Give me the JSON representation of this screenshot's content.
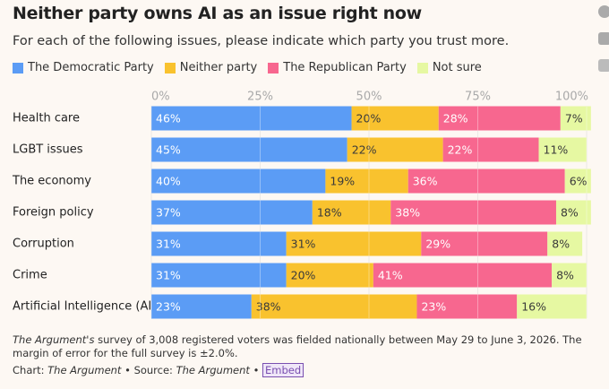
{
  "chart_data": {
    "type": "stacked_bar_horizontal",
    "title": "Neither party owns AI as an issue right now",
    "subtitle": "For each of the following issues, please indicate which party you trust more.",
    "categories": [
      "Health care",
      "LGBT issues",
      "The economy",
      "Foreign policy",
      "Corruption",
      "Crime",
      "Artificial Intelligence (AI)"
    ],
    "series": [
      {
        "name": "The Democratic Party",
        "color": "#5b9cf5",
        "label_color": "#ffffff",
        "values": [
          46,
          45,
          40,
          37,
          31,
          31,
          23
        ],
        "value_labels": [
          "46%",
          "45%",
          "40%",
          "37%",
          "31%",
          "31%",
          "23%"
        ]
      },
      {
        "name": "Neither party",
        "color": "#f9c22e",
        "label_color": "#3a3a3a",
        "values": [
          20,
          22,
          19,
          18,
          31,
          20,
          38
        ],
        "value_labels": [
          "20%",
          "22%",
          "19%",
          "18%",
          "31%",
          "20%",
          "38%"
        ]
      },
      {
        "name": "The Republican Party",
        "color": "#f7678f",
        "label_color": "#ffffff",
        "values": [
          28,
          22,
          36,
          38,
          29,
          41,
          23
        ],
        "value_labels": [
          "28%",
          "22%",
          "36%",
          "38%",
          "29%",
          "41%",
          "23%"
        ]
      },
      {
        "name": "Not sure",
        "color": "#e6f8a2",
        "label_color": "#3a3a3a",
        "values": [
          7,
          11,
          6,
          8,
          8,
          8,
          16
        ],
        "value_labels": [
          "7%",
          "11%",
          "6%",
          "8%",
          "8%",
          "8%",
          "16%"
        ]
      }
    ],
    "xlim": [
      0,
      100
    ],
    "xticks": [
      {
        "value": 0,
        "label": "0%"
      },
      {
        "value": 25,
        "label": "25%"
      },
      {
        "value": 50,
        "label": "50%"
      },
      {
        "value": 75,
        "label": "75%"
      },
      {
        "value": 100,
        "label": "100%"
      }
    ],
    "grid": true,
    "note_source": "The Argument's",
    "note": "survey of 3,008 registered voters was fielded nationally between May 29 to June 3, 2026. The margin of error for the full survey is ±2.0%.",
    "chart_label": "Chart:",
    "chart_by": "The Argument",
    "separator": "•",
    "source_label": "Source:",
    "source": "The Argument",
    "embed": "Embed"
  }
}
